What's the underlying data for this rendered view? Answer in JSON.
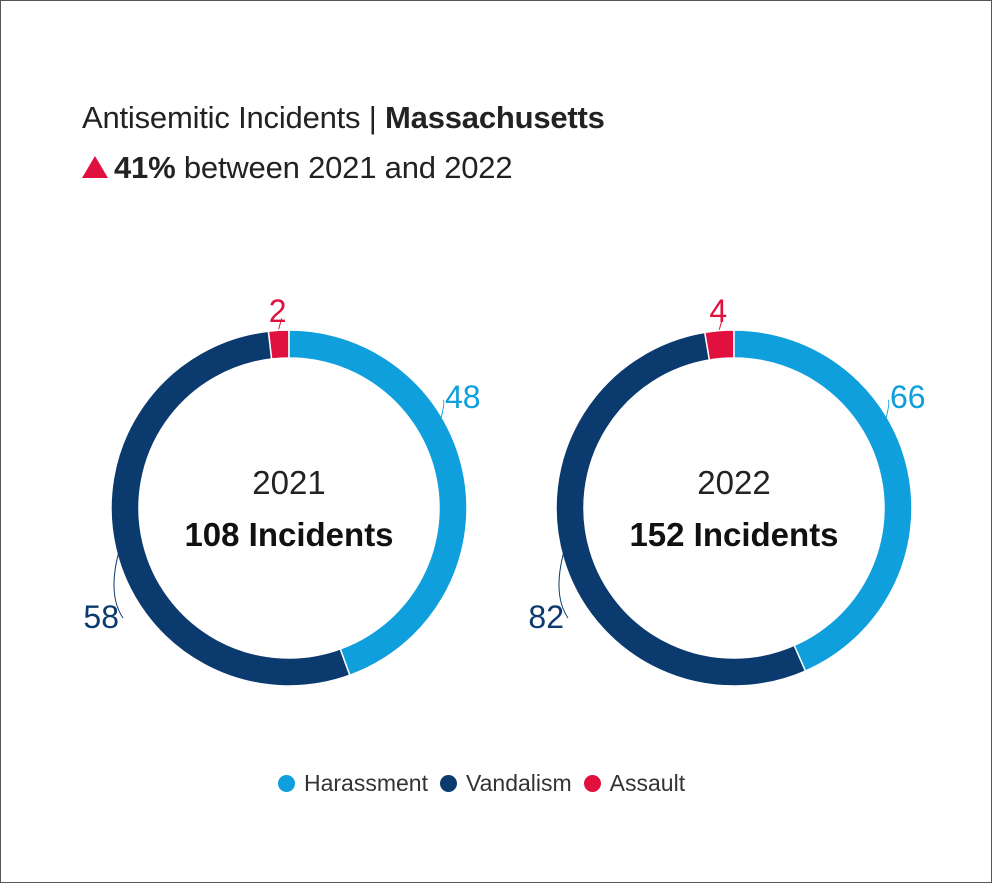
{
  "title": {
    "prefix": "Antisemitic Incidents | ",
    "emphasis": "Massachusetts"
  },
  "subtitle": {
    "change": "41%",
    "text": " between 2021 and 2022",
    "arrow_icon": "up-triangle-icon"
  },
  "colors": {
    "harassment": "#0e9fdc",
    "vandalism": "#0b3a6e",
    "assault": "#e0103f",
    "text": "#222222"
  },
  "chart_data": [
    {
      "type": "pie",
      "year_label": "2021",
      "total_label": "108 Incidents",
      "categories": [
        "Harassment",
        "Vandalism",
        "Assault"
      ],
      "values": [
        48,
        58,
        2
      ]
    },
    {
      "type": "pie",
      "year_label": "2022",
      "total_label": "152 Incidents",
      "categories": [
        "Harassment",
        "Vandalism",
        "Assault"
      ],
      "values": [
        66,
        82,
        4
      ]
    }
  ],
  "legend": [
    {
      "label": "Harassment",
      "color_key": "harassment"
    },
    {
      "label": "Vandalism",
      "color_key": "vandalism"
    },
    {
      "label": "Assault",
      "color_key": "assault"
    }
  ]
}
